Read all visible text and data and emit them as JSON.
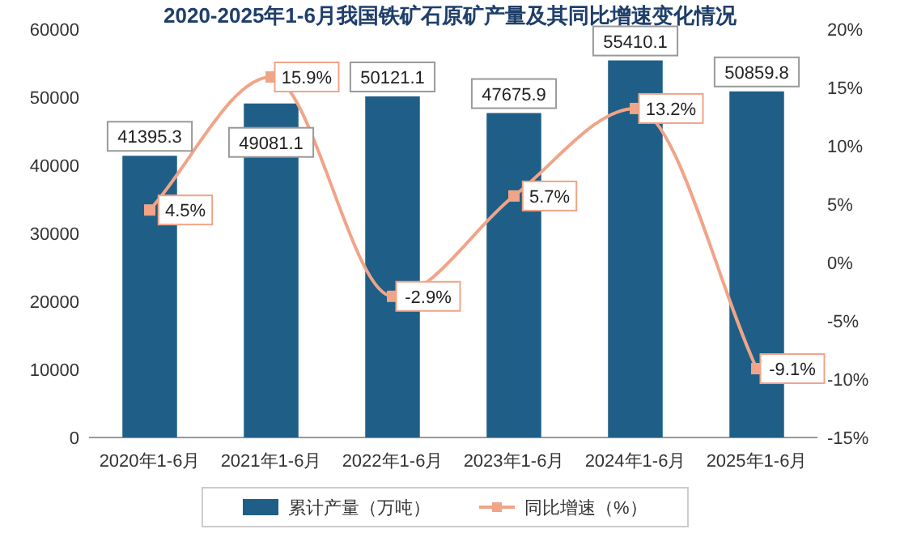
{
  "chart_data": {
    "type": "bar",
    "title": "2020-2025年1-6月我国铁矿石原矿产量及其同比增速变化情况",
    "categories": [
      "2020年1-6月",
      "2021年1-6月",
      "2022年1-6月",
      "2023年1-6月",
      "2024年1-6月",
      "2025年1-6月"
    ],
    "series": [
      {
        "name": "累计产量（万吨）",
        "color": "#1f5f87",
        "values": [
          41395.3,
          49081.1,
          50121.1,
          47675.9,
          55410.1,
          50859.8
        ],
        "value_labels": [
          "41395.3",
          "49081.1",
          "50121.1",
          "47675.9",
          "55410.1",
          "50859.8"
        ]
      },
      {
        "name": "同比增速（%）",
        "type": "line",
        "axis": "y2",
        "color": "#f0a488",
        "marker": "square",
        "values": [
          4.5,
          15.9,
          -2.9,
          5.7,
          13.2,
          -9.1
        ],
        "value_labels": [
          "4.5%",
          "15.9%",
          "-2.9%",
          "5.7%",
          "13.2%",
          "-9.1%"
        ]
      }
    ],
    "ylim": [
      0,
      60000
    ],
    "yticks": [
      0,
      10000,
      20000,
      30000,
      40000,
      50000,
      60000
    ],
    "y2lim": [
      -15,
      20
    ],
    "y2ticks": [
      {
        "value": -15,
        "label": "-15%"
      },
      {
        "value": -10,
        "label": "-10%"
      },
      {
        "value": -5,
        "label": "-5%"
      },
      {
        "value": 0,
        "label": "0%"
      },
      {
        "value": 5,
        "label": "5%"
      },
      {
        "value": 10,
        "label": "10%"
      },
      {
        "value": 15,
        "label": "15%"
      },
      {
        "value": 20,
        "label": "20%"
      }
    ],
    "grid": false,
    "legend": "bottom"
  }
}
